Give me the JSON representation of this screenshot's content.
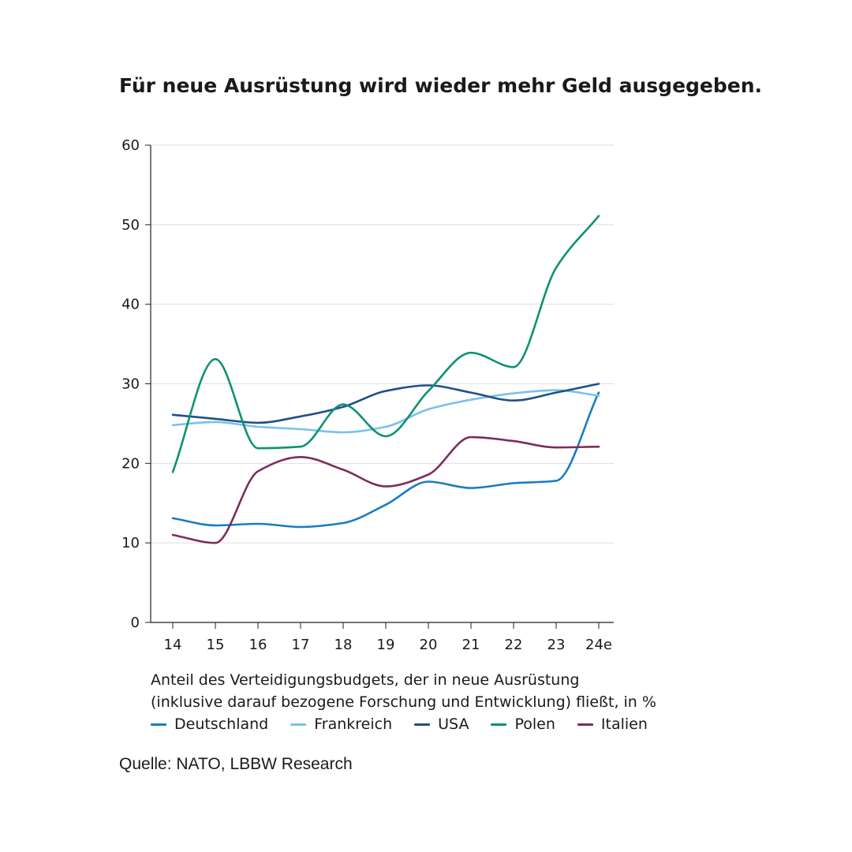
{
  "title": "Für neue Ausrüstung wird wieder mehr Geld ausgegeben.",
  "caption": {
    "line1": "Anteil des Verteidigungsbudgets, der in neue Ausrüstung",
    "line2": "(inklusive darauf bezogene Forschung und Entwicklung) fließt, in %"
  },
  "source": "Quelle: NATO, LBBW Research",
  "chart_data": {
    "type": "line",
    "categories": [
      "14",
      "15",
      "16",
      "17",
      "18",
      "19",
      "20",
      "21",
      "22",
      "23",
      "24e"
    ],
    "ylim": [
      0,
      60
    ],
    "yticks": [
      "0",
      "10",
      "20",
      "30",
      "40",
      "50",
      "60"
    ],
    "grid": true,
    "legend_position": "bottom",
    "series": [
      {
        "name": "Deutschland",
        "color": "#1a7cc1",
        "values": [
          13.1,
          12.2,
          12.4,
          12.0,
          12.5,
          14.8,
          17.7,
          16.9,
          17.5,
          17.8,
          28.9
        ]
      },
      {
        "name": "Frankreich",
        "color": "#79c2ea",
        "values": [
          24.8,
          25.2,
          24.6,
          24.3,
          23.9,
          24.6,
          26.8,
          28.0,
          28.8,
          29.2,
          28.5
        ]
      },
      {
        "name": "USA",
        "color": "#1f4f87",
        "values": [
          26.1,
          25.6,
          25.1,
          25.9,
          27.1,
          29.1,
          29.8,
          28.9,
          27.9,
          28.9,
          30.0
        ]
      },
      {
        "name": "Polen",
        "color": "#0d9272",
        "values": [
          18.9,
          33.1,
          21.9,
          22.1,
          27.4,
          23.4,
          29.1,
          33.9,
          32.1,
          44.6,
          51.1
        ]
      },
      {
        "name": "Italien",
        "color": "#7b2d5e",
        "values": [
          11.0,
          10.0,
          19.0,
          20.8,
          19.2,
          17.1,
          18.6,
          23.3,
          22.8,
          22.0,
          22.1
        ]
      }
    ]
  }
}
